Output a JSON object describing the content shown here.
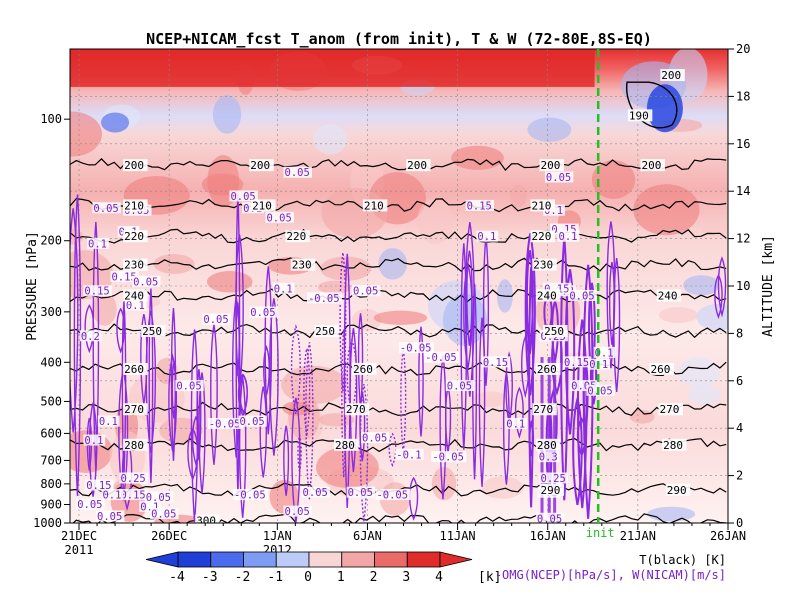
{
  "chart_data": {
    "type": "heatmap",
    "title": "NCEP+NICAM_fcst T_anom (from init), T & W  (72-80E,8S-EQ)",
    "ylabel_left": "PRESSURE [hPa]",
    "ylabel_right": "ALTITUDE [km]",
    "pressure_ticks": [
      100,
      200,
      300,
      400,
      500,
      600,
      700,
      800,
      900,
      1000
    ],
    "altitude_ticks": [
      0,
      2,
      4,
      6,
      8,
      10,
      12,
      14,
      16,
      18,
      20
    ],
    "ylim_altitude_km": [
      0,
      20
    ],
    "x_ticks": [
      {
        "day": 0,
        "label": "21DEC"
      },
      {
        "day": 5,
        "label": "26DEC"
      },
      {
        "day": 11,
        "label": "1JAN"
      },
      {
        "day": 16,
        "label": "6JAN"
      },
      {
        "day": 21,
        "label": "11JAN"
      },
      {
        "day": 26,
        "label": "16JAN"
      },
      {
        "day": 31,
        "label": "21JAN"
      },
      {
        "day": 36,
        "label": "26JAN"
      }
    ],
    "year_labels": [
      {
        "day": 0,
        "label": "2011"
      },
      {
        "day": 11,
        "label": "2012"
      }
    ],
    "xlim_days": [
      -0.5,
      36
    ],
    "init_day": 28.8,
    "init_label": "init",
    "colorbar": {
      "ticks": [
        -4,
        -3,
        -2,
        -1,
        0,
        1,
        2,
        3,
        4
      ],
      "unit": "[k]",
      "colors": [
        "#1f3fd6",
        "#4a6bee",
        "#7f9cf5",
        "#bccbf7",
        "#ffffff",
        "#f8d6d6",
        "#f2a6a6",
        "#eb6a6a",
        "#e02b2b"
      ]
    },
    "legend": {
      "temperature": "T(black) [K]",
      "wind": "-OMG(NCEP)[hPa/s], W(NICAM)[m/s]"
    },
    "isotherms": [
      {
        "value": 190,
        "alt": 17.2,
        "label": "190"
      },
      {
        "value": 200,
        "alt": 15.1,
        "label": "200"
      },
      {
        "value": 210,
        "alt": 13.4,
        "label": "210"
      },
      {
        "value": 220,
        "alt": 12.1,
        "label": "220"
      },
      {
        "value": 230,
        "alt": 10.9,
        "label": "230"
      },
      {
        "value": 240,
        "alt": 9.6,
        "label": "240"
      },
      {
        "value": 250,
        "alt": 8.1,
        "label": "250"
      },
      {
        "value": 260,
        "alt": 6.5,
        "label": "260"
      },
      {
        "value": 270,
        "alt": 4.8,
        "label": "270"
      },
      {
        "value": 280,
        "alt": 3.3,
        "label": "280"
      },
      {
        "value": 290,
        "alt": 1.4,
        "label": "290"
      },
      {
        "value": 300,
        "alt": 0.1,
        "label": "300"
      }
    ],
    "isotherm_label_days": [
      {
        "value": 200,
        "days": [
          2.5,
          9.5,
          18.2,
          25.6,
          31.2
        ]
      },
      {
        "value": 210,
        "days": [
          2.5,
          9.6,
          15.8,
          25.1
        ]
      },
      {
        "value": 220,
        "days": [
          2.5,
          11.5,
          25.1
        ]
      },
      {
        "value": 230,
        "days": [
          2.5,
          11.8,
          25.2
        ]
      },
      {
        "value": 240,
        "days": [
          2.5,
          25.4,
          32.1
        ]
      },
      {
        "value": 250,
        "days": [
          3.5,
          13.1,
          25.8
        ]
      },
      {
        "value": 260,
        "days": [
          2.5,
          15.2,
          25.4,
          31.7
        ]
      },
      {
        "value": 270,
        "days": [
          2.5,
          14.8,
          25.2,
          32.2
        ]
      },
      {
        "value": 280,
        "days": [
          2.5,
          14.2,
          25.4,
          32.4
        ]
      },
      {
        "value": 290,
        "days": [
          25.6,
          32.6
        ]
      },
      {
        "value": 300,
        "days": [
          6.5
        ]
      }
    ],
    "upper_region_labels": [
      {
        "day": 30.5,
        "alt": 17.2,
        "text": "190"
      },
      {
        "day": 32.3,
        "alt": 18.9,
        "text": "200"
      }
    ],
    "w_contour_labels": [
      "0.05",
      "0.1",
      "0.15",
      "0.2",
      "0.25",
      "0.3",
      "-0.05",
      "-0.1"
    ],
    "w_label_positions": [
      {
        "day": 0.8,
        "alt": 13.3,
        "text": "0.05"
      },
      {
        "day": 2.5,
        "alt": 13.2,
        "text": "0.05"
      },
      {
        "day": 0.5,
        "alt": 11.8,
        "text": "0.1"
      },
      {
        "day": 2.2,
        "alt": 12.3,
        "text": "0.1"
      },
      {
        "day": 1.8,
        "alt": 10.4,
        "text": "0.15"
      },
      {
        "day": 3.0,
        "alt": 10.2,
        "text": "0.05"
      },
      {
        "day": 0.3,
        "alt": 9.8,
        "text": "0.15"
      },
      {
        "day": 2.6,
        "alt": 9.2,
        "text": "0.1"
      },
      {
        "day": 0.1,
        "alt": 7.9,
        "text": "0.2"
      },
      {
        "day": 6.9,
        "alt": 8.6,
        "text": "0.05"
      },
      {
        "day": 8.4,
        "alt": 13.8,
        "text": "0.05"
      },
      {
        "day": 9.1,
        "alt": 13.3,
        "text": "0.1"
      },
      {
        "day": 10.4,
        "alt": 12.9,
        "text": "0.05"
      },
      {
        "day": 11.4,
        "alt": 14.8,
        "text": "0.05"
      },
      {
        "day": 9.5,
        "alt": 8.9,
        "text": "0.05"
      },
      {
        "day": 10.8,
        "alt": 9.9,
        "text": "0.1"
      },
      {
        "day": 12.7,
        "alt": 9.5,
        "text": "-0.05"
      },
      {
        "day": 15.2,
        "alt": 9.8,
        "text": "0.05"
      },
      {
        "day": 5.4,
        "alt": 5.8,
        "text": "0.05"
      },
      {
        "day": 0.3,
        "alt": 3.5,
        "text": "0.1"
      },
      {
        "day": 1.1,
        "alt": 4.3,
        "text": "0.1"
      },
      {
        "day": 7.2,
        "alt": 4.2,
        "text": "-0.05"
      },
      {
        "day": 8.9,
        "alt": 4.3,
        "text": "0.05"
      },
      {
        "day": 15.7,
        "alt": 3.6,
        "text": "0.05"
      },
      {
        "day": 17.8,
        "alt": 7.4,
        "text": "-0.05"
      },
      {
        "day": 19.2,
        "alt": 7.0,
        "text": "-0.05"
      },
      {
        "day": 20.4,
        "alt": 5.8,
        "text": "0.05"
      },
      {
        "day": 19.6,
        "alt": 2.8,
        "text": "-0.05"
      },
      {
        "day": 17.6,
        "alt": 2.9,
        "text": "-0.1"
      },
      {
        "day": 16.5,
        "alt": 1.2,
        "text": "-0.05"
      },
      {
        "day": 8.6,
        "alt": 1.2,
        "text": "-0.05"
      },
      {
        "day": 12.4,
        "alt": 1.3,
        "text": "0.05"
      },
      {
        "day": 14.9,
        "alt": 1.3,
        "text": "0.05"
      },
      {
        "day": 11.4,
        "alt": 0.5,
        "text": "0.05"
      },
      {
        "day": 2.3,
        "alt": 1.2,
        "text": "0.15"
      },
      {
        "day": 3.7,
        "alt": 1.1,
        "text": "0.05"
      },
      {
        "day": 0.4,
        "alt": 1.6,
        "text": "0.15"
      },
      {
        "day": 1.3,
        "alt": 1.2,
        "text": "0.1"
      },
      {
        "day": 2.3,
        "alt": 1.9,
        "text": "0.25"
      },
      {
        "day": -0.1,
        "alt": 0.8,
        "text": "0.05"
      },
      {
        "day": 1.0,
        "alt": 0.3,
        "text": "0.05"
      },
      {
        "day": 3.4,
        "alt": 0.7,
        "text": "0.1"
      },
      {
        "day": 4.0,
        "alt": 0.4,
        "text": "0.05"
      },
      {
        "day": 25.9,
        "alt": 14.6,
        "text": "0.05"
      },
      {
        "day": 25.8,
        "alt": 13.2,
        "text": "0.1"
      },
      {
        "day": 26.2,
        "alt": 12.4,
        "text": "0.15"
      },
      {
        "day": 26.6,
        "alt": 12.1,
        "text": "0.1"
      },
      {
        "day": 21.5,
        "alt": 13.4,
        "text": "0.15"
      },
      {
        "day": 22.1,
        "alt": 12.1,
        "text": "0.1"
      },
      {
        "day": 26.4,
        "alt": 9.8,
        "text": "0.2"
      },
      {
        "day": 25.8,
        "alt": 9.9,
        "text": "0.15"
      },
      {
        "day": 27.2,
        "alt": 9.6,
        "text": "0.05"
      },
      {
        "day": 25.6,
        "alt": 7.9,
        "text": "0.25"
      },
      {
        "day": 26.9,
        "alt": 6.8,
        "text": "0.15"
      },
      {
        "day": 28.3,
        "alt": 6.7,
        "text": "0.1"
      },
      {
        "day": 28.6,
        "alt": 7.2,
        "text": "0.1"
      },
      {
        "day": 27.3,
        "alt": 5.8,
        "text": "0.05"
      },
      {
        "day": 28.2,
        "alt": 5.6,
        "text": "0.05"
      },
      {
        "day": 22.4,
        "alt": 6.8,
        "text": "0.15"
      },
      {
        "day": 23.7,
        "alt": 4.2,
        "text": "0.1"
      },
      {
        "day": 25.5,
        "alt": 2.8,
        "text": "0.3"
      },
      {
        "day": 25.6,
        "alt": 1.9,
        "text": "0.25"
      },
      {
        "day": 25.5,
        "alt": 1.3,
        "text": "0.2"
      },
      {
        "day": 25.4,
        "alt": 0.2,
        "text": "0.05"
      }
    ]
  }
}
